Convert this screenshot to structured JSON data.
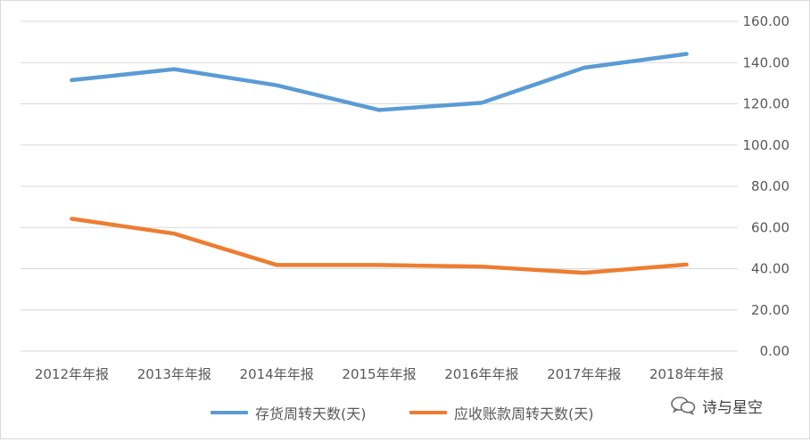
{
  "chart_data": {
    "type": "line",
    "categories": [
      "2012年年报",
      "2013年年报",
      "2014年年报",
      "2015年年报",
      "2016年年报",
      "2017年年报",
      "2018年年报"
    ],
    "series": [
      {
        "name": "存货周转天数(天)",
        "color": "#5b9bd5",
        "values": [
          131.5,
          136.8,
          129.0,
          117.0,
          120.5,
          137.5,
          144.2
        ]
      },
      {
        "name": "应收账款周转天数(天)",
        "color": "#ed7d31",
        "values": [
          64.2,
          57.0,
          41.8,
          41.8,
          41.0,
          38.0,
          42.0
        ]
      }
    ],
    "yticks": [
      "0.00",
      "20.00",
      "40.00",
      "60.00",
      "80.00",
      "100.00",
      "120.00",
      "140.00",
      "160.00"
    ],
    "ylim": [
      0,
      160
    ],
    "y_axis_side": "right",
    "grid": true,
    "legend_position": "bottom"
  },
  "watermark": {
    "text": "诗与星空",
    "icon": "wechat-icon"
  }
}
